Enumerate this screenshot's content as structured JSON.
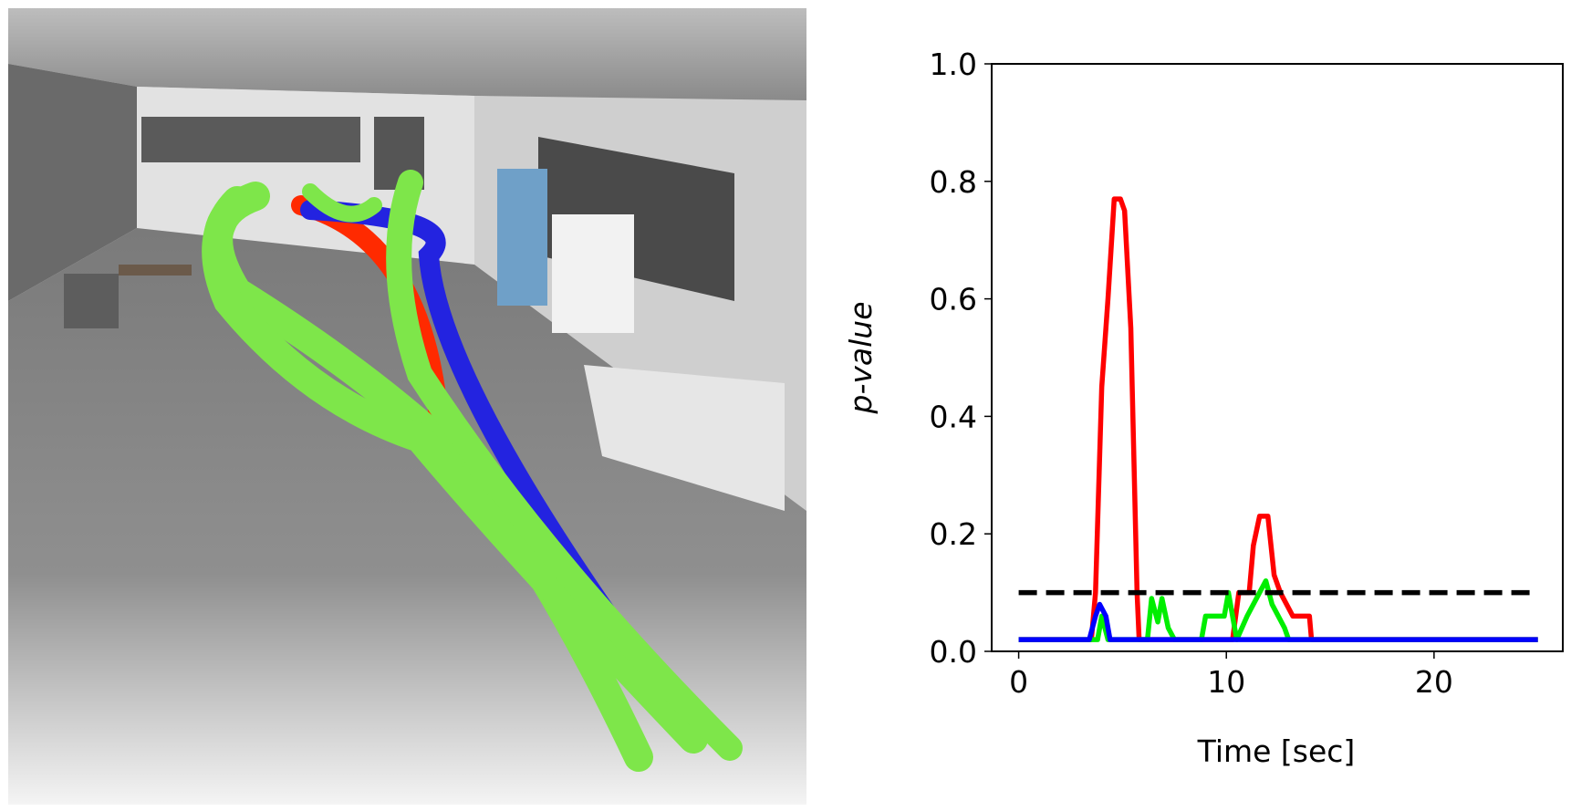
{
  "chart_data": {
    "type": "line",
    "xlabel": "Time [sec]",
    "ylabel": "p-value",
    "xlim": [
      -1.3,
      26.2
    ],
    "ylim": [
      0,
      1
    ],
    "xticks": [
      0,
      10,
      20
    ],
    "yticks": [
      0.0,
      0.2,
      0.4,
      0.6,
      0.8,
      1.0
    ],
    "threshold": {
      "value": 0.1,
      "color": "#000000"
    },
    "series": [
      {
        "name": "red",
        "color": "#ff0000",
        "x": [
          0,
          3.5,
          3.7,
          4.0,
          4.3,
          4.6,
          4.9,
          5.1,
          5.4,
          5.7,
          5.8,
          10.3,
          10.6,
          11.1,
          11.3,
          11.6,
          12.0,
          12.3,
          12.6,
          13.2,
          14.0,
          14.1,
          25
        ],
        "values": [
          0.02,
          0.02,
          0.1,
          0.45,
          0.6,
          0.77,
          0.77,
          0.75,
          0.55,
          0.1,
          0.02,
          0.02,
          0.1,
          0.1,
          0.18,
          0.23,
          0.23,
          0.13,
          0.1,
          0.06,
          0.06,
          0.02,
          0.02
        ]
      },
      {
        "name": "green",
        "color": "#00ee00",
        "x": [
          0,
          3.8,
          4.0,
          4.3,
          6.2,
          6.4,
          6.7,
          6.9,
          7.2,
          7.5,
          8.8,
          9.0,
          9.9,
          10.1,
          10.5,
          11.0,
          11.6,
          11.9,
          12.2,
          12.8,
          13.0,
          25
        ],
        "values": [
          0.02,
          0.02,
          0.06,
          0.02,
          0.02,
          0.09,
          0.05,
          0.09,
          0.04,
          0.02,
          0.02,
          0.06,
          0.06,
          0.1,
          0.02,
          0.06,
          0.1,
          0.12,
          0.08,
          0.04,
          0.02,
          0.02
        ]
      },
      {
        "name": "blue",
        "color": "#0000ff",
        "x": [
          0,
          3.4,
          3.7,
          3.9,
          4.2,
          4.4,
          25
        ],
        "values": [
          0.02,
          0.02,
          0.06,
          0.08,
          0.06,
          0.02,
          0.02
        ]
      }
    ]
  }
}
